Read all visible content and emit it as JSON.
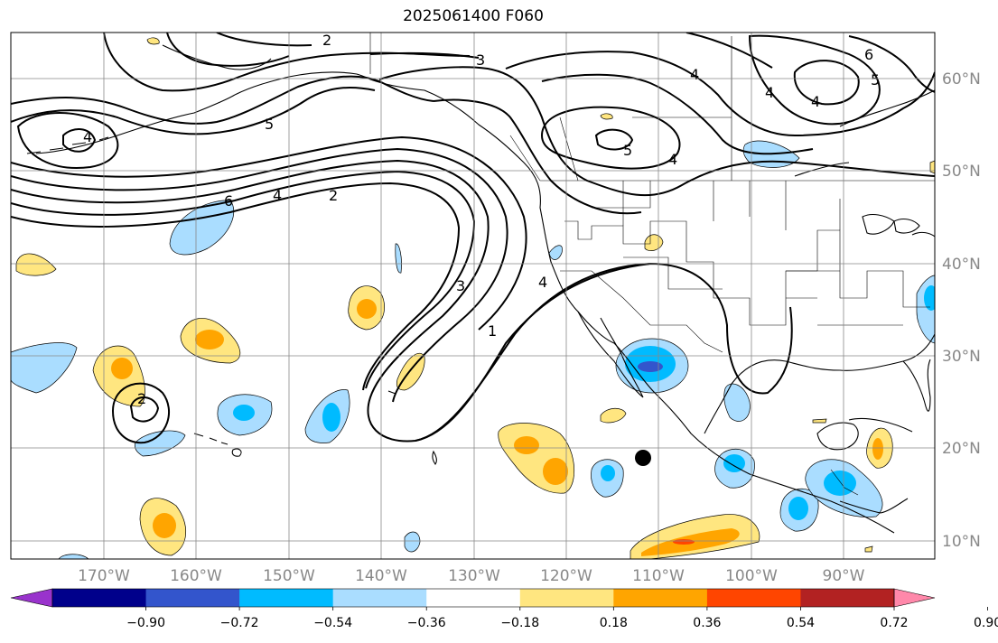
{
  "title": "2025061400 F060",
  "map": {
    "lon_labels": [
      "170°W",
      "160°W",
      "150°W",
      "140°W",
      "130°W",
      "120°W",
      "110°W",
      "100°W",
      "90°W"
    ],
    "lat_labels": [
      "60°N",
      "50°N",
      "40°N",
      "30°N",
      "20°N",
      "10°N"
    ],
    "lon_range": [
      -180,
      -80
    ],
    "lat_range": [
      8,
      65
    ],
    "contour_labels": [
      "2",
      "3",
      "4",
      "5",
      "4",
      "6",
      "4",
      "2",
      "3",
      "1",
      "4",
      "5",
      "4",
      "4",
      "6",
      "5",
      "4",
      "2"
    ],
    "marker": {
      "lon": -110,
      "lat": 19,
      "label": "storm-center"
    }
  },
  "colorbar": {
    "colors": [
      "#9933cc",
      "#00008b",
      "#3355cc",
      "#00bbff",
      "#aaddff",
      "#ffffff",
      "#ffe680",
      "#ffa500",
      "#ff4500",
      "#b22222",
      "#ff88aa"
    ],
    "tick_labels": [
      "−0.90",
      "−0.72",
      "−0.54",
      "−0.36",
      "−0.18",
      "0.18",
      "0.36",
      "0.54",
      "0.72",
      "0.90"
    ]
  }
}
